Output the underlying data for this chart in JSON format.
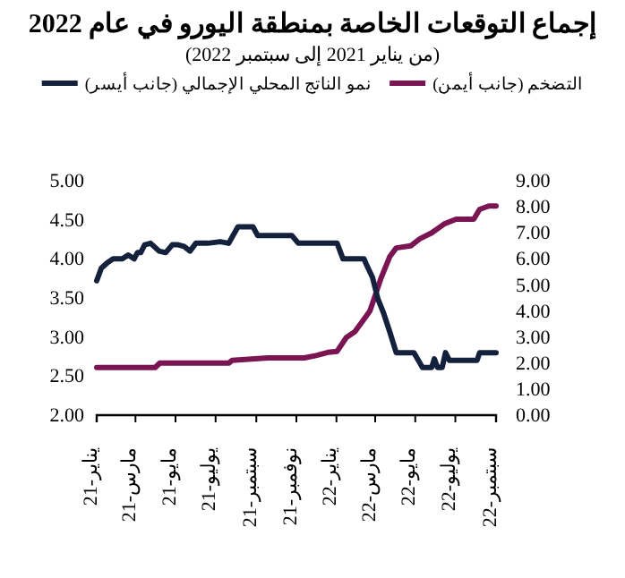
{
  "chart_data": {
    "type": "line",
    "title": "إجماع التوقعات الخاصة بمنطقة اليورو في عام 2022",
    "subtitle": "(من يناير 2021 إلى سبتمبر 2022)",
    "legend": "top",
    "grid": false,
    "xlim": [
      "2021-01-01",
      "2022-09-01"
    ],
    "xticks": [
      {
        "value": "2021-01-01",
        "label": "يناير-21"
      },
      {
        "value": "2021-03-01",
        "label": "مارس-21"
      },
      {
        "value": "2021-05-01",
        "label": "مايو-21"
      },
      {
        "value": "2021-07-01",
        "label": "يوليو-21"
      },
      {
        "value": "2021-09-01",
        "label": "سبتمبر-21"
      },
      {
        "value": "2021-11-01",
        "label": "نوفمبر-21"
      },
      {
        "value": "2022-01-01",
        "label": "يناير-22"
      },
      {
        "value": "2022-03-01",
        "label": "مارس-22"
      },
      {
        "value": "2022-05-01",
        "label": "مايو-22"
      },
      {
        "value": "2022-07-01",
        "label": "يوليو-22"
      },
      {
        "value": "2022-09-01",
        "label": "سبتمبر-22"
      }
    ],
    "ylim": [
      2,
      5
    ],
    "yticks": [
      {
        "value": 2,
        "label": "2.00"
      },
      {
        "value": 2.5,
        "label": "2.50"
      },
      {
        "value": 3,
        "label": "3.00"
      },
      {
        "value": 3.5,
        "label": "3.50"
      },
      {
        "value": 4,
        "label": "4.00"
      },
      {
        "value": 4.5,
        "label": "4.50"
      },
      {
        "value": 5,
        "label": "5.00"
      }
    ],
    "y2lim": [
      0,
      9
    ],
    "y2ticks": [
      {
        "value": 0,
        "label": "0.00"
      },
      {
        "value": 1,
        "label": "1.00"
      },
      {
        "value": 2,
        "label": "2.00"
      },
      {
        "value": 3,
        "label": "3.00"
      },
      {
        "value": 4,
        "label": "4.00"
      },
      {
        "value": 5,
        "label": "5.00"
      },
      {
        "value": 6,
        "label": "6.00"
      },
      {
        "value": 7,
        "label": "7.00"
      },
      {
        "value": 8,
        "label": "8.00"
      },
      {
        "value": 9,
        "label": "9.00"
      }
    ],
    "series": [
      {
        "name": "التضخم (جانب أيمن)",
        "color": "#7b1452",
        "axis": "y2",
        "x": [
          "2021-01-01",
          "2021-03-31",
          "2021-04-07",
          "2021-07-21",
          "2021-07-26",
          "2021-09-19",
          "2021-11-13",
          "2021-12-01",
          "2021-12-19",
          "2022-01-02",
          "2022-01-16",
          "2022-01-29",
          "2022-02-08",
          "2022-02-21",
          "2022-03-01",
          "2022-03-10",
          "2022-03-23",
          "2022-04-02",
          "2022-04-24",
          "2022-05-08",
          "2022-05-26",
          "2022-06-14",
          "2022-07-02",
          "2022-07-29",
          "2022-08-07",
          "2022-08-21",
          "2022-09-01"
        ],
        "values": [
          1.83,
          1.83,
          2.0,
          2.0,
          2.1,
          2.2,
          2.2,
          2.29,
          2.41,
          2.45,
          2.98,
          3.2,
          3.55,
          4.0,
          4.6,
          5.27,
          6.08,
          6.42,
          6.5,
          6.77,
          7.0,
          7.34,
          7.52,
          7.52,
          7.9,
          8.03,
          8.03
        ]
      },
      {
        "name": "نمو الناتج المحلي الإجمالي (جانب أيسر)",
        "color": "#14213d",
        "axis": "y",
        "x": [
          "2021-01-01",
          "2021-01-08",
          "2021-01-17",
          "2021-01-26",
          "2021-02-09",
          "2021-02-18",
          "2021-02-27",
          "2021-03-04",
          "2021-03-09",
          "2021-03-15",
          "2021-03-24",
          "2021-04-06",
          "2021-04-16",
          "2021-04-26",
          "2021-05-05",
          "2021-05-14",
          "2021-05-23",
          "2021-06-01",
          "2021-06-19",
          "2021-07-08",
          "2021-07-21",
          "2021-08-04",
          "2021-08-27",
          "2021-09-03",
          "2021-10-25",
          "2021-11-04",
          "2021-11-13",
          "2022-01-02",
          "2022-01-11",
          "2022-02-12",
          "2022-02-16",
          "2022-02-25",
          "2022-03-05",
          "2022-03-14",
          "2022-03-23",
          "2022-04-02",
          "2022-04-29",
          "2022-05-12",
          "2022-05-26",
          "2022-05-30",
          "2022-06-04",
          "2022-06-11",
          "2022-06-16",
          "2022-06-22",
          "2022-08-03",
          "2022-08-07",
          "2022-09-01"
        ],
        "values": [
          3.72,
          3.88,
          3.95,
          4.0,
          4.0,
          4.05,
          4.0,
          4.08,
          4.08,
          4.18,
          4.2,
          4.1,
          4.08,
          4.18,
          4.18,
          4.16,
          4.1,
          4.2,
          4.2,
          4.22,
          4.2,
          4.41,
          4.41,
          4.3,
          4.3,
          4.2,
          4.2,
          4.2,
          4.0,
          4.0,
          3.92,
          3.76,
          3.49,
          3.3,
          3.07,
          2.8,
          2.8,
          2.61,
          2.61,
          2.72,
          2.61,
          2.61,
          2.8,
          2.7,
          2.7,
          2.8,
          2.8
        ]
      }
    ]
  }
}
